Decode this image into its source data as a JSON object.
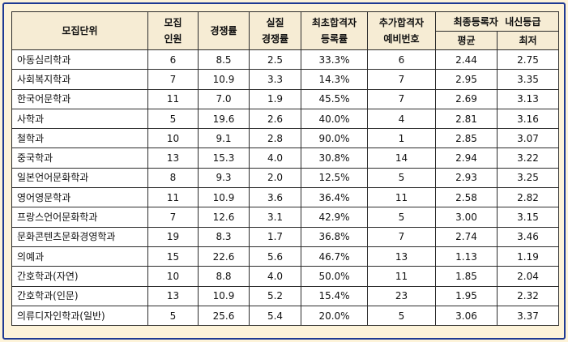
{
  "table": {
    "headers": {
      "unit": "모집단위",
      "quota_l1": "모집",
      "quota_l2": "인원",
      "competition": "경쟁률",
      "actual_l1": "실질",
      "actual_l2": "경쟁률",
      "first_l1": "최초합격자",
      "first_l2": "등록률",
      "reserve_l1": "추가합격자",
      "reserve_l2": "예비번호",
      "grade_group": "최종등록자  내신등급",
      "grade_avg": "평균",
      "grade_min": "최저"
    },
    "rows": [
      [
        "아동심리학과",
        "6",
        "8.5",
        "2.5",
        "33.3%",
        "6",
        "2.44",
        "2.75"
      ],
      [
        "사회복지학과",
        "7",
        "10.9",
        "3.3",
        "14.3%",
        "7",
        "2.95",
        "3.35"
      ],
      [
        "한국어문학과",
        "11",
        "7.0",
        "1.9",
        "45.5%",
        "7",
        "2.69",
        "3.13"
      ],
      [
        "사학과",
        "5",
        "19.6",
        "2.6",
        "40.0%",
        "4",
        "2.81",
        "3.16"
      ],
      [
        "철학과",
        "10",
        "9.1",
        "2.8",
        "90.0%",
        "1",
        "2.85",
        "3.07"
      ],
      [
        "중국학과",
        "13",
        "15.3",
        "4.0",
        "30.8%",
        "14",
        "2.94",
        "3.22"
      ],
      [
        "일본언어문화학과",
        "8",
        "9.3",
        "2.0",
        "12.5%",
        "5",
        "2.93",
        "3.25"
      ],
      [
        "영어영문학과",
        "11",
        "10.9",
        "3.6",
        "36.4%",
        "11",
        "2.58",
        "2.82"
      ],
      [
        "프랑스언어문화학과",
        "7",
        "12.6",
        "3.1",
        "42.9%",
        "5",
        "3.00",
        "3.15"
      ],
      [
        "문화콘텐츠문화경영학과",
        "19",
        "8.3",
        "1.7",
        "36.8%",
        "7",
        "2.74",
        "3.46"
      ],
      [
        "의예과",
        "15",
        "22.6",
        "5.6",
        "46.7%",
        "13",
        "1.13",
        "1.19"
      ],
      [
        "간호학과(자연)",
        "10",
        "8.8",
        "4.0",
        "50.0%",
        "11",
        "1.85",
        "2.04"
      ],
      [
        "간호학과(인문)",
        "13",
        "10.9",
        "5.2",
        "15.4%",
        "23",
        "1.95",
        "2.32"
      ],
      [
        "의류디자인학과(일반)",
        "5",
        "25.6",
        "5.4",
        "20.0%",
        "5",
        "3.06",
        "3.37"
      ]
    ]
  }
}
